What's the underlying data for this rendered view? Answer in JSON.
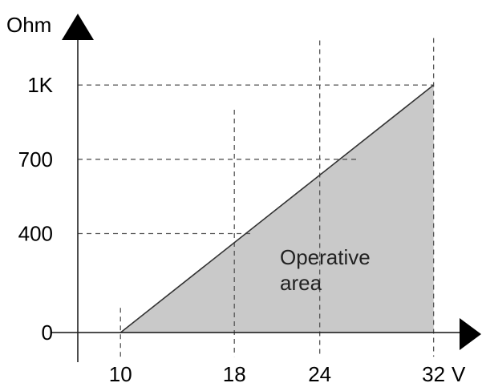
{
  "chart_data": {
    "type": "area",
    "xlabel": "V",
    "ylabel": "Ohm",
    "x_ticks": [
      {
        "value": 10,
        "label": "10"
      },
      {
        "value": 18,
        "label": "18"
      },
      {
        "value": 24,
        "label": "24"
      },
      {
        "value": 32,
        "label": "32"
      }
    ],
    "y_ticks": [
      {
        "value": 0,
        "label": "0"
      },
      {
        "value": 400,
        "label": "400"
      },
      {
        "value": 700,
        "label": "700"
      },
      {
        "value": 1000,
        "label": "1K"
      }
    ],
    "series": [
      {
        "points": [
          {
            "x": 10,
            "y": 0
          },
          {
            "x": 32,
            "y": 1000
          }
        ]
      }
    ],
    "annotation": {
      "line1": "Operative",
      "line2": "area"
    },
    "fill_color": "#c9c9c9",
    "line_color": "#333333",
    "grid": "dashed reference lines",
    "xlim": [
      7,
      34.5
    ],
    "ylim": [
      -100,
      1240
    ]
  }
}
